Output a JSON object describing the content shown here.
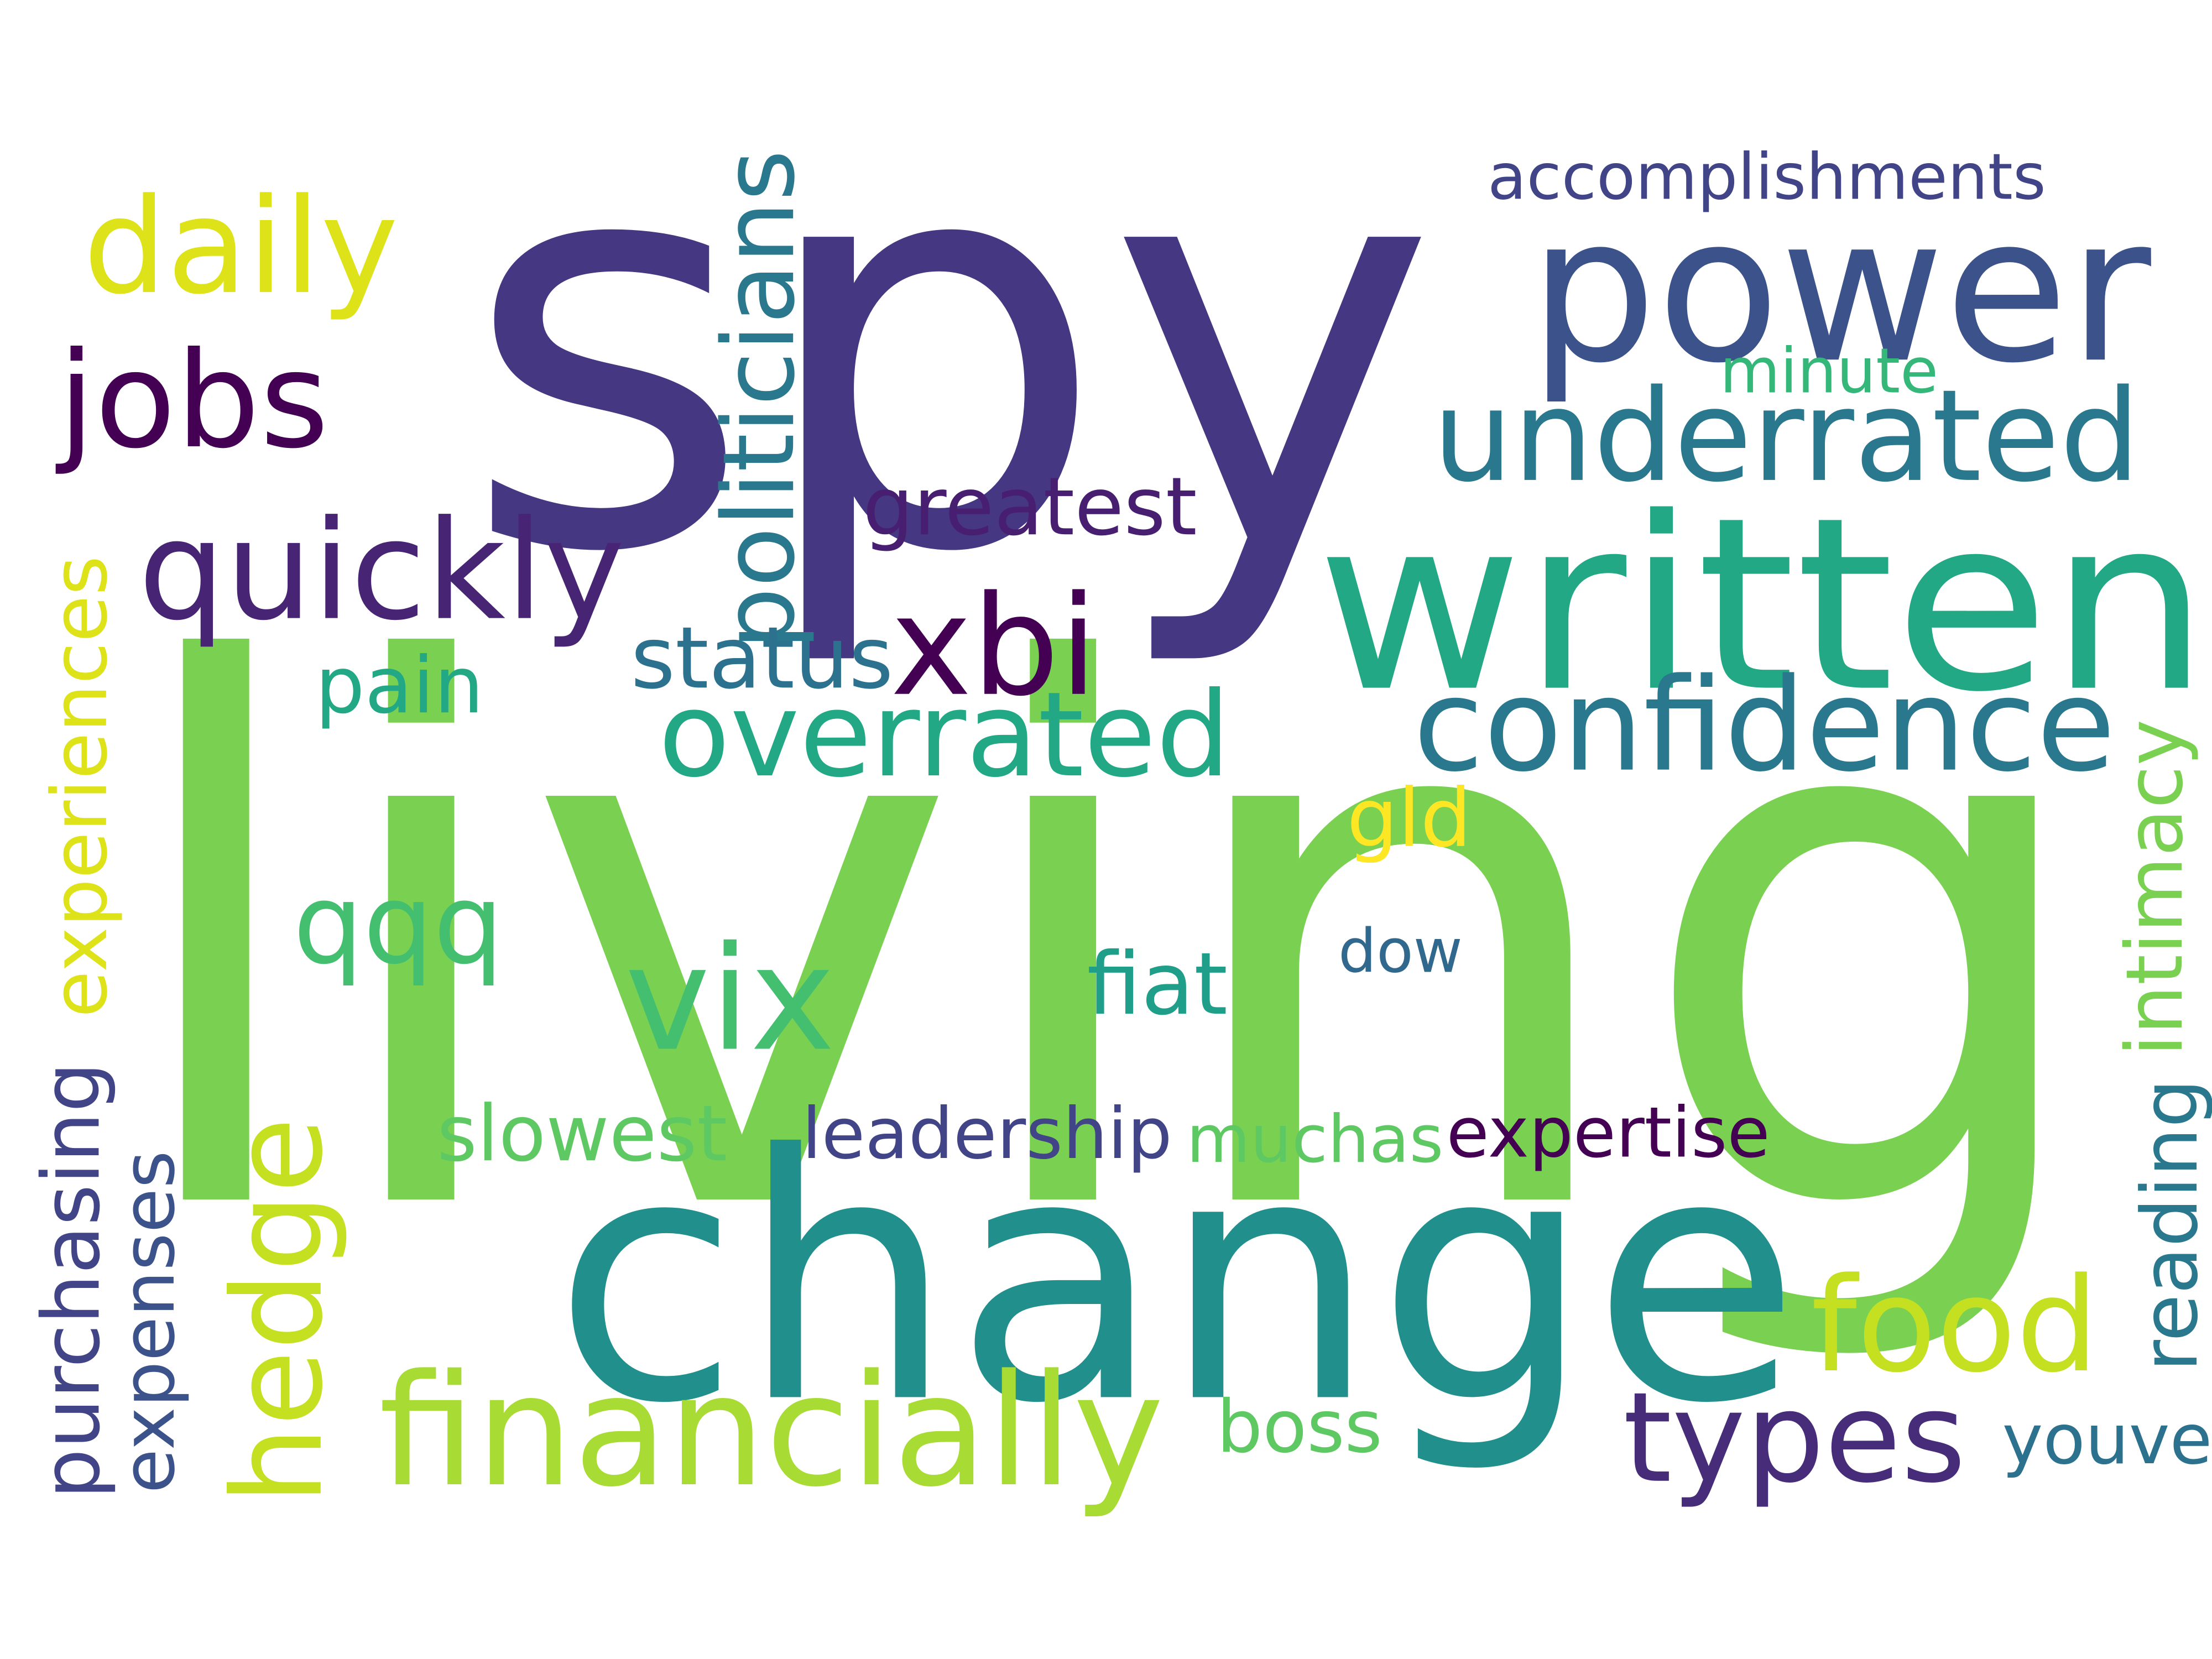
{
  "words": [
    {
      "text": "spy",
      "color": "#453781",
      "orientation": "horizontal"
    },
    {
      "text": "living",
      "color": "#7ad151",
      "orientation": "horizontal"
    },
    {
      "text": "change",
      "color": "#21908d",
      "orientation": "horizontal"
    },
    {
      "text": "written",
      "color": "#22a884",
      "orientation": "horizontal"
    },
    {
      "text": "power",
      "color": "#3b528b",
      "orientation": "horizontal"
    },
    {
      "text": "underrated",
      "color": "#2a788e",
      "orientation": "horizontal"
    },
    {
      "text": "confidence",
      "color": "#2a788e",
      "orientation": "horizontal"
    },
    {
      "text": "jobs",
      "color": "#440154",
      "orientation": "horizontal"
    },
    {
      "text": "quickly",
      "color": "#482475",
      "orientation": "horizontal"
    },
    {
      "text": "daily",
      "color": "#dde318",
      "orientation": "horizontal"
    },
    {
      "text": "overrated",
      "color": "#22a884",
      "orientation": "horizontal"
    },
    {
      "text": "financially",
      "color": "#a8db34",
      "orientation": "horizontal"
    },
    {
      "text": "hedge",
      "color": "#c5e021",
      "orientation": "vertical"
    },
    {
      "text": "food",
      "color": "#c5e021",
      "orientation": "horizontal"
    },
    {
      "text": "types",
      "color": "#472c7a",
      "orientation": "horizontal"
    },
    {
      "text": "xbi",
      "color": "#440154",
      "orientation": "horizontal"
    },
    {
      "text": "qqq",
      "color": "#44bf70",
      "orientation": "horizontal"
    },
    {
      "text": "vix",
      "color": "#44bf70",
      "orientation": "horizontal"
    },
    {
      "text": "politicians",
      "color": "#2a788e",
      "orientation": "vertical"
    },
    {
      "text": "experiences",
      "color": "#dde318",
      "orientation": "vertical"
    },
    {
      "text": "purchasing",
      "color": "#414487",
      "orientation": "vertical"
    },
    {
      "text": "expenses",
      "color": "#3b528b",
      "orientation": "vertical"
    },
    {
      "text": "accomplishments",
      "color": "#414487",
      "orientation": "horizontal"
    },
    {
      "text": "greatest",
      "color": "#481f70",
      "orientation": "horizontal"
    },
    {
      "text": "minute",
      "color": "#35b779",
      "orientation": "horizontal"
    },
    {
      "text": "status",
      "color": "#2c728e",
      "orientation": "horizontal"
    },
    {
      "text": "pain",
      "color": "#22a884",
      "orientation": "horizontal"
    },
    {
      "text": "gld",
      "color": "#fde725",
      "orientation": "horizontal"
    },
    {
      "text": "dow",
      "color": "#31688e",
      "orientation": "horizontal"
    },
    {
      "text": "fiat",
      "color": "#1f9e89",
      "orientation": "horizontal"
    },
    {
      "text": "intimacy",
      "color": "#7ad151",
      "orientation": "vertical"
    },
    {
      "text": "reading",
      "color": "#2a788e",
      "orientation": "vertical"
    },
    {
      "text": "slowest",
      "color": "#5ec962",
      "orientation": "horizontal"
    },
    {
      "text": "leadership",
      "color": "#414487",
      "orientation": "horizontal"
    },
    {
      "text": "muchas",
      "color": "#5ec962",
      "orientation": "horizontal"
    },
    {
      "text": "expertise",
      "color": "#440154",
      "orientation": "horizontal"
    },
    {
      "text": "boss",
      "color": "#5ec962",
      "orientation": "horizontal"
    },
    {
      "text": "youve",
      "color": "#2c728e",
      "orientation": "horizontal"
    }
  ]
}
